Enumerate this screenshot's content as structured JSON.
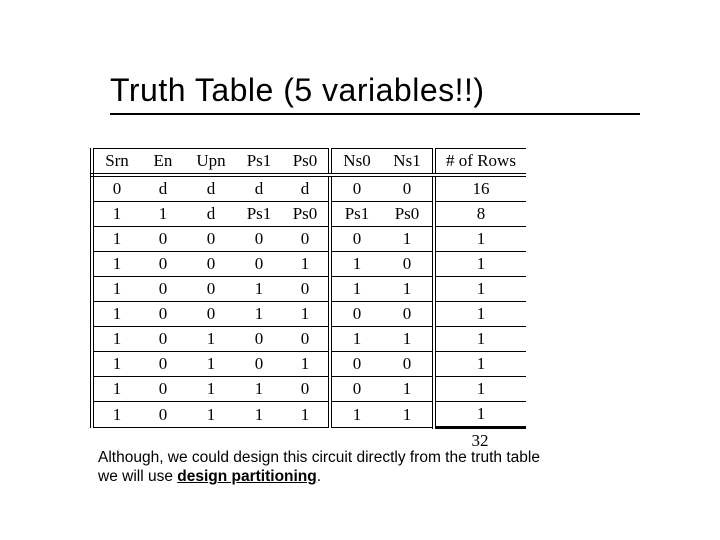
{
  "title": "Truth Table  (5 variables!!)",
  "table": {
    "columns": [
      "Srn",
      "En",
      "Upn",
      "Ps1",
      "Ps0",
      "Ns0",
      "Ns1",
      "# of Rows"
    ],
    "rows": [
      [
        "0",
        "d",
        "d",
        "d",
        "d",
        "0",
        "0",
        "16"
      ],
      [
        "1",
        "1",
        "d",
        "Ps1",
        "Ps0",
        "Ps1",
        "Ps0",
        "8"
      ],
      [
        "1",
        "0",
        "0",
        "0",
        "0",
        "0",
        "1",
        "1"
      ],
      [
        "1",
        "0",
        "0",
        "0",
        "1",
        "1",
        "0",
        "1"
      ],
      [
        "1",
        "0",
        "0",
        "1",
        "0",
        "1",
        "1",
        "1"
      ],
      [
        "1",
        "0",
        "0",
        "1",
        "1",
        "0",
        "0",
        "1"
      ],
      [
        "1",
        "0",
        "1",
        "0",
        "0",
        "1",
        "1",
        "1"
      ],
      [
        "1",
        "0",
        "1",
        "0",
        "1",
        "0",
        "0",
        "1"
      ],
      [
        "1",
        "0",
        "1",
        "1",
        "0",
        "0",
        "1",
        "1"
      ],
      [
        "1",
        "0",
        "1",
        "1",
        "1",
        "1",
        "1",
        "1"
      ]
    ],
    "sum": "32",
    "group_left_borders_before_cols": [
      0,
      5,
      7
    ],
    "colors": {
      "border": "#000000",
      "background": "#ffffff",
      "text": "#000000"
    },
    "font": {
      "family": "Times New Roman",
      "size_pt": 13
    }
  },
  "caption": {
    "line1_a": "Although, we could design this circuit directly from the truth table",
    "line2_a": "we will use ",
    "line2_b": "design partitioning",
    "line2_c": "."
  }
}
